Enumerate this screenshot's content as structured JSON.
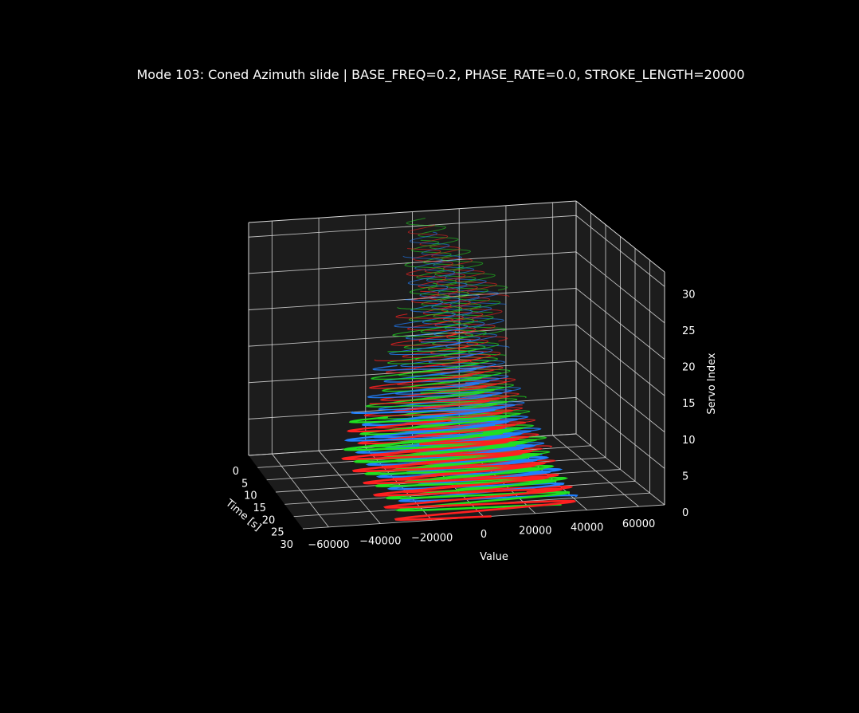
{
  "chart_data": {
    "type": "line",
    "projection": "3d",
    "title": "Mode 103: Coned Azimuth slide | BASE_FREQ=0.2, PHASE_RATE=0.0, STROKE_LENGTH=20000",
    "xlabel": "Time [s]",
    "ylabel": "Value",
    "zlabel": "Servo Index",
    "xlim": [
      0,
      30
    ],
    "ylim": [
      -70000,
      70000
    ],
    "zlim": [
      0,
      32
    ],
    "x_ticks": [
      0,
      5,
      10,
      15,
      20,
      25,
      30
    ],
    "y_ticks": [
      -60000,
      -40000,
      -20000,
      0,
      20000,
      40000,
      60000
    ],
    "y_tick_labels": [
      "−60000",
      "−40000",
      "−20000",
      "0",
      "20000",
      "40000",
      "60000"
    ],
    "z_ticks": [
      0,
      5,
      10,
      15,
      20,
      25,
      30
    ],
    "grid": true,
    "colors": {
      "background": "#000000",
      "pane": "#1c1c1c",
      "grid": "#d9d9d9",
      "series_cycle": [
        "#ff2020",
        "#20e020",
        "#2080ff"
      ]
    },
    "series_description": "One trace per servo index 0–31; color cycles red, green, blue by index; amplitude decays as the servo index increases",
    "servo_count": 32,
    "base_freq": 0.2,
    "stroke_length": 20000
  }
}
